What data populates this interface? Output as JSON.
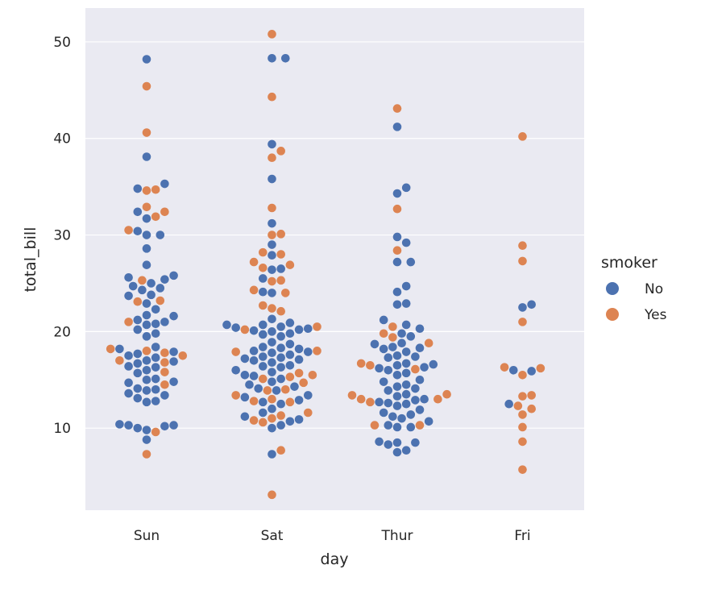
{
  "chart_data": {
    "type": "scatter",
    "title": "",
    "xlabel": "day",
    "ylabel": "total_bill",
    "categories": [
      "Sun",
      "Sat",
      "Thur",
      "Fri"
    ],
    "yticks": [
      "10",
      "20",
      "30",
      "40",
      "50"
    ],
    "ylim": [
      1.5,
      53.5
    ],
    "grid": true,
    "legend": {
      "title": "smoker",
      "placement": "right",
      "entries": [
        {
          "name": "No",
          "color": "#4c72b0"
        },
        {
          "name": "Yes",
          "color": "#dd8452"
        }
      ]
    },
    "colors": {
      "background": "#eaeaf2",
      "grid": "#ffffff",
      "No": "#4c72b0",
      "Yes": "#dd8452"
    },
    "series": [
      {
        "name": "No",
        "values": {
          "Sun": [
            48.2,
            38.1,
            35.3,
            34.8,
            32.4,
            31.7,
            30.4,
            30.0,
            30.0,
            28.6,
            26.9,
            25.8,
            25.6,
            25.4,
            25.0,
            24.7,
            24.5,
            24.3,
            23.8,
            23.7,
            22.9,
            22.3,
            21.7,
            21.6,
            21.2,
            21.0,
            20.8,
            20.7,
            20.2,
            19.8,
            19.5,
            18.4,
            18.2,
            17.9,
            17.7,
            17.5,
            17.3,
            17.0,
            16.9,
            16.7,
            16.4,
            16.3,
            16.0,
            15.7,
            15.1,
            15.0,
            14.8,
            14.7,
            14.1,
            14.0,
            13.9,
            13.6,
            13.4,
            13.1,
            12.8,
            12.7,
            10.4,
            10.3,
            10.3,
            10.2,
            10.0,
            9.8,
            8.8
          ],
          "Sat": [
            48.3,
            48.3,
            39.4,
            35.8,
            31.2,
            29.0,
            27.9,
            26.5,
            26.4,
            25.5,
            24.1,
            24.0,
            21.3,
            20.9,
            20.7,
            20.7,
            20.5,
            20.4,
            20.3,
            20.2,
            20.1,
            20.0,
            19.8,
            19.7,
            19.5,
            18.9,
            18.7,
            18.4,
            18.3,
            18.2,
            18.0,
            17.9,
            17.8,
            17.6,
            17.4,
            17.3,
            17.2,
            17.1,
            17.0,
            16.8,
            16.5,
            16.4,
            16.3,
            16.0,
            15.8,
            15.5,
            15.4,
            15.1,
            14.8,
            14.5,
            14.3,
            14.1,
            13.9,
            13.4,
            13.2,
            12.9,
            12.7,
            12.5,
            12.0,
            11.6,
            11.2,
            10.9,
            10.7,
            10.3,
            10.0,
            7.3
          ],
          "Thur": [
            41.2,
            34.9,
            34.3,
            29.8,
            29.2,
            27.2,
            27.2,
            24.7,
            24.1,
            22.9,
            22.8,
            21.2,
            20.7,
            20.3,
            19.8,
            19.5,
            18.8,
            18.7,
            18.4,
            18.3,
            18.2,
            17.9,
            17.5,
            17.4,
            17.3,
            16.7,
            16.6,
            16.5,
            16.3,
            16.2,
            16.0,
            15.7,
            15.5,
            15.0,
            14.8,
            14.5,
            14.3,
            14.1,
            13.9,
            13.5,
            13.3,
            13.0,
            12.9,
            12.7,
            12.6,
            12.5,
            12.3,
            11.9,
            11.6,
            11.4,
            11.2,
            11.0,
            10.7,
            10.3,
            10.1,
            10.1,
            8.6,
            8.5,
            8.5,
            8.3,
            7.7,
            7.5
          ],
          "Fri": [
            22.8,
            22.5,
            16.0,
            15.9,
            12.5
          ]
        }
      },
      {
        "name": "Yes",
        "values": {
          "Sun": [
            45.4,
            40.6,
            34.7,
            34.6,
            32.9,
            32.4,
            31.9,
            30.5,
            25.3,
            23.2,
            23.1,
            21.0,
            18.2,
            18.0,
            17.8,
            17.5,
            17.0,
            16.8,
            15.8,
            14.5,
            9.6,
            7.3
          ],
          "Sat": [
            50.8,
            44.3,
            38.7,
            38.0,
            32.8,
            30.1,
            30.0,
            28.2,
            28.0,
            27.2,
            26.9,
            26.6,
            25.3,
            25.2,
            24.3,
            24.0,
            22.7,
            22.4,
            22.1,
            20.5,
            20.2,
            18.0,
            17.9,
            15.7,
            15.5,
            15.3,
            15.1,
            14.7,
            14.0,
            13.9,
            13.4,
            13.0,
            12.8,
            12.7,
            11.6,
            11.3,
            11.0,
            10.8,
            10.6,
            7.7,
            3.1
          ],
          "Thur": [
            43.1,
            32.7,
            28.4,
            20.5,
            19.8,
            19.4,
            18.8,
            16.7,
            16.5,
            16.1,
            13.5,
            13.4,
            13.0,
            12.7,
            10.3,
            10.3,
            13.0
          ],
          "Fri": [
            40.2,
            28.9,
            27.3,
            21.0,
            16.3,
            16.2,
            15.5,
            13.4,
            13.3,
            12.3,
            12.0,
            11.4,
            10.1,
            8.6,
            5.7
          ]
        }
      }
    ]
  }
}
